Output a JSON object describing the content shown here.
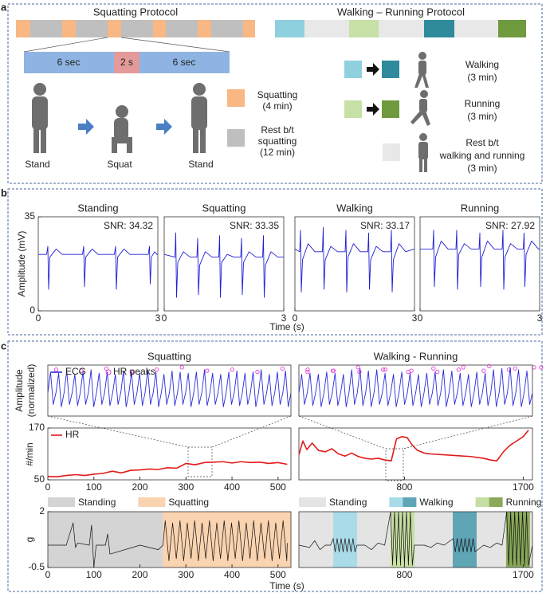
{
  "panel_a": {
    "label": "a",
    "squatting_title": "Squatting Protocol",
    "walking_title": "Walking – Running Protocol",
    "timing": [
      "6 sec",
      "2 s",
      "6 sec"
    ],
    "poses": [
      "Stand",
      "Squat",
      "Stand"
    ],
    "squat_legend": [
      [
        "Squatting",
        "(4 min)"
      ],
      [
        "Rest b/t",
        "squatting",
        "(12 min)"
      ]
    ],
    "walk_legend": [
      [
        "Walking",
        "(3 min)"
      ],
      [
        "Running",
        "(3 min)"
      ],
      [
        "Rest b/t",
        "walking and running",
        "(3 min)"
      ]
    ]
  },
  "panel_b": {
    "label": "b",
    "ylabel": "Amplitude (mV)",
    "xlabel": "Time (s)"
  },
  "panel_c": {
    "label": "c",
    "ylabel_ecg": [
      "Amplitude",
      "(normalized)"
    ],
    "ylabel_hr": "#/min",
    "ylabel_acc": "g",
    "xlabel": "Time (s)"
  },
  "chart_data": [
    {
      "type": "line",
      "title": "Standing",
      "annotation": "SNR: 34.32",
      "color": "#1f1fd6",
      "xlim": [
        0,
        3
      ],
      "xticks": [
        0,
        3
      ],
      "ylim": [
        0,
        35
      ],
      "yticks": [
        0,
        35
      ],
      "x": [
        0,
        0.21,
        0.24,
        0.26,
        0.29,
        0.45,
        0.6,
        1.11,
        1.14,
        1.16,
        1.19,
        1.35,
        1.5,
        1.91,
        1.94,
        1.96,
        1.99,
        2.15,
        2.3,
        2.76,
        2.79,
        2.81,
        2.84,
        2.92,
        2.98,
        3
      ],
      "values": [
        21,
        21,
        24,
        8,
        20,
        23,
        21,
        21,
        24,
        9,
        20,
        23,
        21,
        21,
        24,
        8,
        20,
        23,
        21,
        21,
        24,
        10,
        20,
        22,
        21,
        21
      ]
    },
    {
      "type": "line",
      "title": "Squatting",
      "annotation": "SNR: 33.35",
      "color": "#1f1fd6",
      "xlim": [
        0,
        3
      ],
      "xticks": [
        0,
        3
      ],
      "ylim": [
        0,
        35
      ],
      "x": [
        0,
        0.27,
        0.29,
        0.31,
        0.34,
        0.48,
        0.65,
        0.82,
        0.84,
        0.86,
        0.89,
        1.03,
        1.2,
        1.37,
        1.39,
        1.41,
        1.44,
        1.58,
        1.75,
        1.92,
        1.94,
        1.96,
        1.99,
        2.13,
        2.3,
        2.47,
        2.49,
        2.51,
        2.54,
        2.68,
        2.85,
        3
      ],
      "values": [
        21,
        20,
        29,
        5,
        18,
        22,
        20,
        20,
        27,
        6,
        17,
        22,
        20,
        20,
        28,
        5,
        18,
        21,
        20,
        20,
        27,
        6,
        18,
        22,
        20,
        20,
        28,
        5,
        17,
        22,
        20,
        20
      ]
    },
    {
      "type": "line",
      "title": "Walking",
      "annotation": "SNR: 33.17",
      "color": "#1f1fd6",
      "xlim": [
        0,
        3
      ],
      "xticks": [
        0,
        3
      ],
      "ylim": [
        0,
        35
      ],
      "x": [
        0,
        0.12,
        0.14,
        0.16,
        0.19,
        0.33,
        0.5,
        0.69,
        0.71,
        0.73,
        0.76,
        0.9,
        1.07,
        1.26,
        1.28,
        1.3,
        1.33,
        1.47,
        1.64,
        1.83,
        1.85,
        1.87,
        1.9,
        2.04,
        2.21,
        2.4,
        2.42,
        2.44,
        2.47,
        2.61,
        2.78,
        3
      ],
      "values": [
        23,
        22,
        30,
        7,
        19,
        25,
        22,
        22,
        31,
        8,
        19,
        24,
        22,
        22,
        30,
        7,
        20,
        25,
        22,
        22,
        29,
        8,
        19,
        24,
        22,
        22,
        30,
        7,
        19,
        25,
        22,
        23
      ]
    },
    {
      "type": "line",
      "title": "Running",
      "annotation": "SNR: 27.92",
      "color": "#1f1fd6",
      "xlim": [
        0,
        3
      ],
      "xticks": [
        0,
        3
      ],
      "ylim": [
        0,
        35
      ],
      "x": [
        0,
        0.32,
        0.34,
        0.36,
        0.39,
        0.53,
        0.7,
        0.9,
        0.92,
        0.94,
        0.97,
        1.11,
        1.28,
        1.48,
        1.5,
        1.52,
        1.55,
        1.69,
        1.86,
        2.06,
        2.08,
        2.1,
        2.13,
        2.27,
        2.44,
        2.59,
        2.61,
        2.63,
        2.66,
        2.8,
        2.97,
        3
      ],
      "values": [
        23,
        23,
        30,
        9,
        20,
        26,
        23,
        23,
        30,
        8,
        21,
        25,
        23,
        23,
        29,
        9,
        20,
        26,
        23,
        23,
        30,
        8,
        20,
        25,
        23,
        23,
        29,
        9,
        21,
        26,
        23,
        23
      ]
    },
    {
      "type": "line",
      "title": "Squatting",
      "ylim": [
        -1,
        1.2
      ],
      "series": [
        {
          "name": "ECG",
          "color": "#2b2bd9",
          "values": [
            0,
            0.9,
            -0.5,
            0,
            0.85,
            -0.6,
            0,
            0.95,
            -0.5,
            0,
            0.8,
            -0.55,
            0,
            0.9,
            -0.5,
            0,
            1.0,
            -0.6,
            0,
            0.85,
            -0.5,
            0,
            0.9,
            -0.55,
            0,
            0.8,
            -0.5,
            0,
            0.95,
            -0.6,
            0,
            0.9,
            -0.5,
            0,
            0.85,
            -0.55,
            0,
            1.0,
            -0.5,
            0,
            0.9,
            -0.6,
            0,
            0.8,
            -0.5,
            0,
            0.95,
            -0.55,
            0,
            0.9,
            -0.5,
            0,
            0.85,
            -0.6,
            0,
            0.9,
            -0.5,
            0,
            1.0,
            -0.55,
            0,
            0.85,
            -0.5,
            0,
            0.8,
            -0.6,
            0,
            0.9,
            -0.5,
            0,
            0.95,
            -0.55,
            0,
            0.85,
            -0.5,
            0,
            0.9,
            -0.6,
            0,
            1.0,
            -0.5,
            0,
            0.8,
            -0.55,
            0,
            0.9,
            -0.5,
            0,
            0.95,
            -0.6,
            0
          ]
        },
        {
          "name": "HR peaks",
          "type": "scatter",
          "color": "#e03fd8",
          "x": [
            1,
            4,
            7,
            10,
            13,
            16,
            19,
            22,
            25,
            28,
            31,
            34,
            37,
            40,
            43,
            46,
            49,
            52,
            55,
            58,
            61,
            64,
            67,
            70,
            73,
            76,
            79,
            82,
            85,
            88
          ],
          "values": [
            0.9,
            0.85,
            0.95,
            0.8,
            0.9,
            1.0,
            0.85,
            0.9,
            0.8,
            0.95,
            0.9,
            0.85,
            1.0,
            0.9,
            0.8,
            0.95,
            0.9,
            0.85,
            0.9,
            1.0,
            0.85,
            0.8,
            0.9,
            0.95,
            0.85,
            0.9,
            1.0,
            0.8,
            0.9,
            0.95
          ]
        }
      ]
    },
    {
      "type": "line",
      "title": "Walking - Running",
      "ylim": [
        -1,
        1.2
      ],
      "series": [
        {
          "color": "#2b2bd9",
          "values": [
            0,
            0.8,
            -0.5,
            0,
            0.85,
            -0.55,
            0,
            0.8,
            -0.6,
            0,
            0.9,
            -0.5,
            0,
            0.85,
            -0.55,
            0,
            0.8,
            -0.6,
            0,
            1.0,
            -0.5,
            0,
            1.05,
            -0.55,
            0,
            0.95,
            -0.6,
            0,
            1.0,
            -0.5,
            0,
            0.85,
            -0.55,
            0,
            0.8,
            -0.6,
            0,
            0.9,
            -0.5,
            0,
            0.85,
            -0.55,
            0,
            0.8,
            -0.6,
            0,
            0.85,
            -0.5,
            0,
            0.9,
            -0.55,
            0,
            1.0,
            -0.6,
            0,
            0.95,
            -0.5,
            0,
            0.85,
            -0.55,
            0,
            0.8,
            -0.6,
            0,
            0.9,
            -0.5,
            0,
            0.85,
            -0.55,
            0,
            1.0,
            -0.6,
            0,
            1.05,
            -0.5,
            0,
            1.1,
            -0.55,
            0,
            1.0,
            -0.6,
            0,
            0.95,
            -0.5,
            0
          ]
        },
        {
          "type": "scatter",
          "color": "#e03fd8",
          "x": [
            1,
            4,
            7,
            10,
            13,
            16,
            19,
            22,
            25,
            28,
            31,
            34,
            37,
            40,
            43,
            46,
            49,
            52,
            55,
            58,
            61,
            64,
            67,
            70,
            73,
            76,
            79,
            82
          ],
          "values": [
            0.8,
            0.85,
            0.8,
            0.9,
            0.85,
            0.8,
            1.0,
            1.05,
            0.95,
            1.0,
            0.85,
            0.8,
            0.9,
            0.85,
            0.8,
            0.85,
            0.9,
            1.0,
            0.95,
            0.85,
            0.8,
            0.9,
            0.85,
            1.0,
            1.05,
            1.1,
            1.0,
            0.95
          ]
        }
      ]
    },
    {
      "type": "line",
      "xlim": [
        0,
        528
      ],
      "xticks": [
        0,
        100,
        200,
        300,
        400,
        500
      ],
      "ylim": [
        50,
        170
      ],
      "yticks": [
        50,
        170
      ],
      "series": [
        {
          "name": "HR",
          "color": "#e31a1a",
          "x": [
            0,
            20,
            40,
            60,
            80,
            100,
            120,
            140,
            160,
            180,
            200,
            220,
            240,
            260,
            280,
            300,
            320,
            340,
            360,
            380,
            400,
            420,
            440,
            460,
            480,
            500,
            520
          ],
          "values": [
            58,
            57,
            60,
            62,
            60,
            63,
            65,
            70,
            66,
            72,
            73,
            75,
            74,
            78,
            77,
            88,
            85,
            90,
            91,
            92,
            89,
            92,
            90,
            91,
            88,
            90,
            86
          ]
        }
      ]
    },
    {
      "type": "line",
      "xlim": [
        0,
        1770
      ],
      "xticks": [
        800,
        1700
      ],
      "ylim": [
        50,
        170
      ],
      "series": [
        {
          "color": "#e31a1a",
          "x": [
            0,
            30,
            60,
            100,
            150,
            200,
            250,
            300,
            350,
            400,
            450,
            500,
            550,
            600,
            650,
            700,
            720,
            740,
            780,
            820,
            860,
            900,
            950,
            1000,
            1100,
            1200,
            1300,
            1400,
            1450,
            1500,
            1550,
            1600,
            1650,
            1700,
            1740
          ],
          "values": [
            108,
            140,
            120,
            135,
            118,
            115,
            122,
            110,
            105,
            112,
            104,
            100,
            98,
            100,
            96,
            94,
            120,
            145,
            150,
            148,
            130,
            118,
            112,
            110,
            108,
            106,
            104,
            100,
            96,
            94,
            115,
            130,
            140,
            150,
            165
          ]
        }
      ]
    },
    {
      "type": "line",
      "xlim": [
        0,
        528
      ],
      "xticks": [
        0,
        100,
        200,
        300,
        400,
        500
      ],
      "ylim": [
        -0.5,
        2
      ],
      "yticks": [
        -0.5,
        2
      ],
      "regions": [
        {
          "name": "Standing",
          "color": "#d4d4d4",
          "start": 0,
          "end": 250
        },
        {
          "name": "Squatting",
          "color": "#fad3b0",
          "start": 250,
          "end": 528
        }
      ],
      "series": [
        {
          "color": "#111111",
          "x": [
            0,
            40,
            55,
            60,
            65,
            90,
            95,
            100,
            105,
            125,
            130,
            135,
            200,
            240,
            250,
            255,
            263,
            271,
            279,
            287,
            295,
            303,
            311,
            319,
            327,
            335,
            343,
            351,
            359,
            367,
            375,
            383,
            391,
            399,
            407,
            415,
            423,
            431,
            439,
            447,
            455,
            463,
            471,
            479,
            487,
            495,
            503,
            511,
            519,
            520
          ],
          "values": [
            0.5,
            0.5,
            1.5,
            0.4,
            0.6,
            0.5,
            1.4,
            -0.5,
            0.5,
            0.5,
            1.0,
            0.1,
            0.5,
            0.3,
            0.5,
            1.6,
            -0.2,
            1.5,
            -0.1,
            1.6,
            -0.2,
            1.5,
            -0.1,
            1.6,
            -0.2,
            1.5,
            -0.1,
            1.6,
            -0.2,
            1.5,
            -0.1,
            1.6,
            -0.2,
            1.5,
            -0.1,
            1.6,
            -0.2,
            1.5,
            -0.1,
            1.6,
            -0.2,
            1.5,
            -0.1,
            1.6,
            -0.2,
            1.5,
            -0.1,
            1.6,
            -0.2,
            0.6
          ]
        }
      ]
    },
    {
      "type": "line",
      "xlim": [
        0,
        1770
      ],
      "xticks": [
        800,
        1700
      ],
      "ylim": [
        -0.5,
        2
      ],
      "regions": [
        {
          "name": "Standing",
          "color": "#e4e4e4",
          "start": 0,
          "end": 1770
        },
        {
          "name": "Walking",
          "color": "#a9dbe8",
          "start": 260,
          "end": 441
        },
        {
          "name": "Running",
          "color": "#c6dea3",
          "start": 695,
          "end": 876
        },
        {
          "name": "Walking",
          "color": "#5fa5b6",
          "start": 1166,
          "end": 1347
        },
        {
          "name": "Running",
          "color": "#8ba95b",
          "start": 1570,
          "end": 1751
        }
      ],
      "series": [
        {
          "color": "#111111",
          "x": [
            0,
            80,
            120,
            160,
            200,
            240,
            260,
            275,
            290,
            305,
            320,
            335,
            350,
            365,
            380,
            395,
            410,
            425,
            440,
            500,
            550,
            600,
            650,
            695,
            710,
            725,
            740,
            755,
            770,
            785,
            800,
            815,
            830,
            845,
            860,
            875,
            950,
            1000,
            1050,
            1100,
            1170,
            1185,
            1200,
            1215,
            1230,
            1245,
            1260,
            1275,
            1290,
            1305,
            1320,
            1335,
            1400,
            1450,
            1500,
            1540,
            1575,
            1590,
            1605,
            1620,
            1635,
            1650,
            1665,
            1680,
            1695,
            1710,
            1725,
            1740,
            1770
          ],
          "values": [
            0.5,
            0.4,
            0.7,
            0.3,
            0.5,
            0.5,
            0.8,
            0.2,
            0.8,
            0.2,
            0.8,
            0.2,
            0.8,
            0.2,
            0.8,
            0.2,
            0.8,
            0.2,
            0.5,
            0.5,
            0.3,
            0.6,
            0.5,
            2.0,
            -0.4,
            2.0,
            -0.4,
            2.0,
            -0.4,
            2.0,
            -0.4,
            2.0,
            -0.4,
            2.0,
            -0.4,
            0.5,
            0.5,
            0.4,
            0.6,
            0.5,
            0.8,
            0.2,
            0.8,
            0.2,
            0.8,
            0.2,
            0.8,
            0.2,
            0.8,
            0.2,
            0.8,
            0.2,
            0.5,
            0.4,
            0.6,
            0.5,
            2.0,
            -0.4,
            2.0,
            -0.4,
            2.0,
            -0.4,
            2.0,
            -0.4,
            2.0,
            -0.4,
            2.0,
            -0.4,
            0.5
          ]
        }
      ]
    }
  ]
}
